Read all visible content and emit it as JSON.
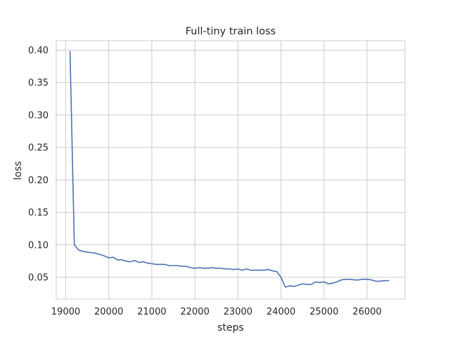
{
  "chart_data": {
    "type": "line",
    "title": "Full-tiny train loss",
    "xlabel": "steps",
    "ylabel": "loss",
    "xlim": [
      18780,
      26880
    ],
    "ylim": [
      0.0165,
      0.4145
    ],
    "xticks": [
      19000,
      20000,
      21000,
      22000,
      23000,
      24000,
      25000,
      26000
    ],
    "yticks": [
      0.05,
      0.1,
      0.15,
      0.2,
      0.25,
      0.3,
      0.35,
      0.4
    ],
    "ytick_labels": [
      "0.05",
      "0.10",
      "0.15",
      "0.20",
      "0.25",
      "0.30",
      "0.35",
      "0.40"
    ],
    "grid": true,
    "line_color": "#4c72b0",
    "series": [
      {
        "x": [
          19100,
          19200,
          19300,
          19400,
          19500,
          19600,
          19700,
          19800,
          19900,
          20000,
          20100,
          20200,
          20300,
          20400,
          20500,
          20600,
          20700,
          20800,
          20900,
          21000,
          21100,
          21200,
          21300,
          21400,
          21500,
          21600,
          21700,
          21800,
          21900,
          22000,
          22100,
          22200,
          22300,
          22400,
          22500,
          22600,
          22700,
          22800,
          22900,
          23000,
          23100,
          23200,
          23300,
          23400,
          23500,
          23600,
          23700,
          23800,
          23900,
          24000,
          24100,
          24200,
          24300,
          24400,
          24500,
          24600,
          24700,
          24800,
          24900,
          25000,
          25100,
          25200,
          25300,
          25400,
          25500,
          25600,
          25700,
          25800,
          25900,
          26000,
          26100,
          26200,
          26300,
          26400,
          26500
        ],
        "values": [
          0.398,
          0.1,
          0.092,
          0.09,
          0.089,
          0.088,
          0.087,
          0.085,
          0.083,
          0.08,
          0.081,
          0.077,
          0.077,
          0.075,
          0.074,
          0.076,
          0.073,
          0.074,
          0.072,
          0.071,
          0.07,
          0.07,
          0.07,
          0.068,
          0.068,
          0.068,
          0.067,
          0.067,
          0.065,
          0.064,
          0.065,
          0.064,
          0.064,
          0.065,
          0.064,
          0.064,
          0.063,
          0.063,
          0.062,
          0.063,
          0.061,
          0.063,
          0.061,
          0.061,
          0.061,
          0.061,
          0.062,
          0.06,
          0.059,
          0.05,
          0.035,
          0.037,
          0.036,
          0.038,
          0.04,
          0.039,
          0.039,
          0.043,
          0.042,
          0.043,
          0.04,
          0.041,
          0.043,
          0.046,
          0.047,
          0.047,
          0.046,
          0.046,
          0.047,
          0.047,
          0.046,
          0.044,
          0.044,
          0.045,
          0.045
        ]
      }
    ]
  }
}
